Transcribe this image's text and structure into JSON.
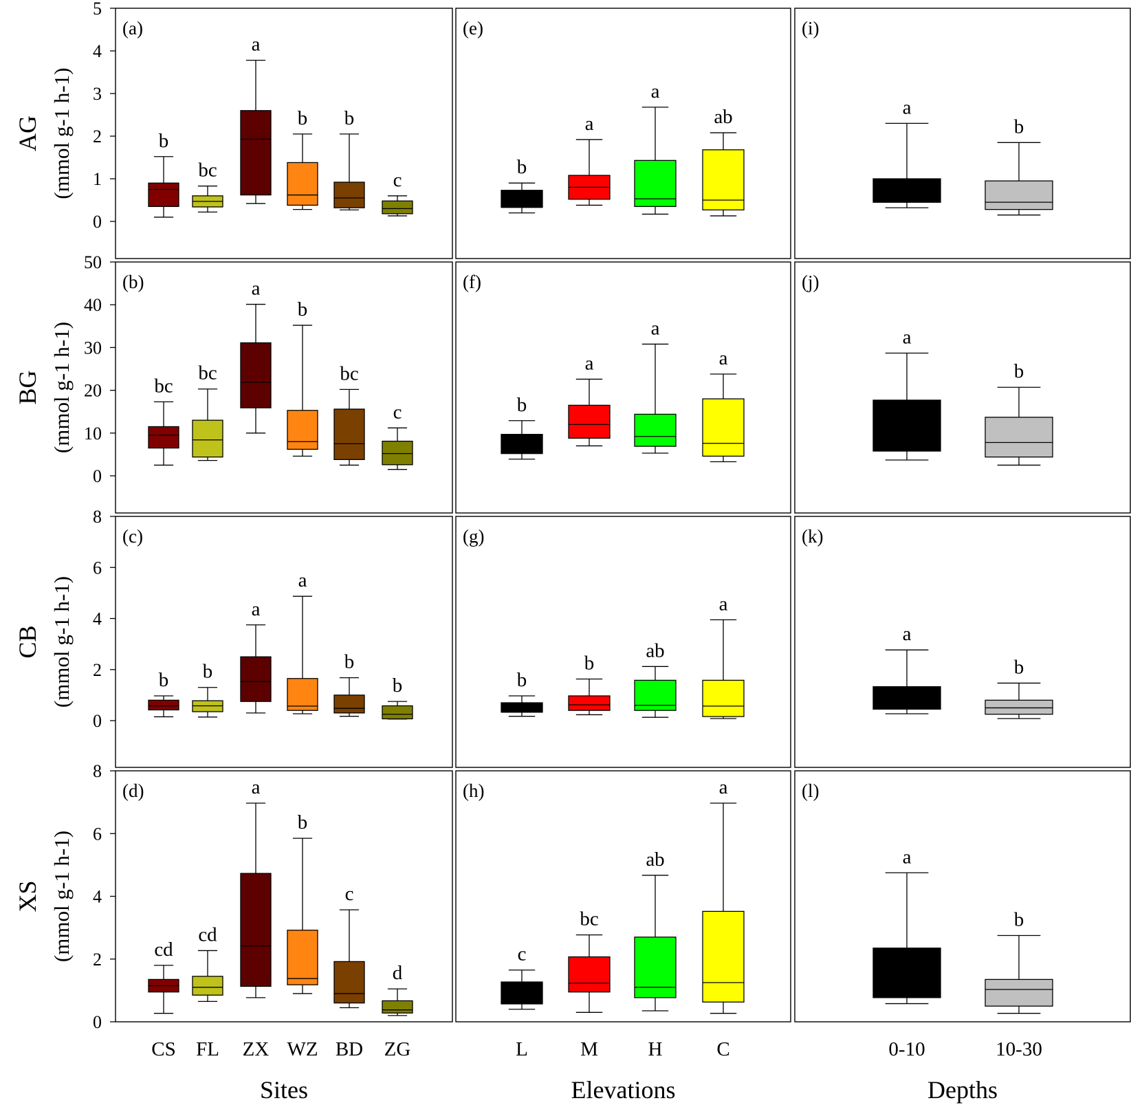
{
  "figure": {
    "x_titles": [
      "Sites",
      "Elevations",
      "Depths"
    ],
    "row_labels": [
      "AG",
      "BG",
      "CB",
      "XS"
    ],
    "unit_label": "(mmol g-1  h-1)"
  },
  "chart_data": {
    "type": "box",
    "columns": [
      {
        "title": "Sites",
        "categories": [
          "CS",
          "FL",
          "ZX",
          "WZ",
          "BD",
          "ZG"
        ],
        "colors": [
          "#800000",
          "#bfc21a",
          "#5c0000",
          "#ff8512",
          "#7a4000",
          "#808000"
        ]
      },
      {
        "title": "Elevations",
        "categories": [
          "L",
          "M",
          "H",
          "C"
        ],
        "colors": [
          "#000000",
          "#ff0000",
          "#00ff00",
          "#ffff00"
        ]
      },
      {
        "title": "Depths",
        "categories": [
          "0-10",
          "10-30"
        ],
        "colors": [
          "#000000",
          "#c0c0c0"
        ]
      }
    ],
    "rows": [
      {
        "name": "AG",
        "ylabel": "AG (mmol g-1  h-1)",
        "ylim": [
          0,
          5
        ],
        "ticks": [
          0,
          1,
          2,
          3,
          4,
          5
        ],
        "panels": [
          {
            "label": "(a)",
            "boxes": [
              {
                "category": "CS",
                "min": 0.1,
                "q1": 0.35,
                "median": 0.75,
                "q3": 0.9,
                "max": 1.52,
                "letter": "b"
              },
              {
                "category": "FL",
                "min": 0.22,
                "q1": 0.34,
                "median": 0.47,
                "q3": 0.6,
                "max": 0.83,
                "letter": "bc"
              },
              {
                "category": "ZX",
                "min": 0.42,
                "q1": 0.62,
                "median": 1.93,
                "q3": 2.6,
                "max": 3.78,
                "letter": "a"
              },
              {
                "category": "WZ",
                "min": 0.28,
                "q1": 0.38,
                "median": 0.62,
                "q3": 1.38,
                "max": 2.05,
                "letter": "b"
              },
              {
                "category": "BD",
                "min": 0.27,
                "q1": 0.32,
                "median": 0.55,
                "q3": 0.92,
                "max": 2.05,
                "letter": "b"
              },
              {
                "category": "ZG",
                "min": 0.13,
                "q1": 0.18,
                "median": 0.3,
                "q3": 0.48,
                "max": 0.6,
                "letter": "c"
              }
            ]
          },
          {
            "label": "(e)",
            "boxes": [
              {
                "category": "L",
                "min": 0.2,
                "q1": 0.33,
                "median": 0.33,
                "q3": 0.73,
                "max": 0.9,
                "letter": "b"
              },
              {
                "category": "M",
                "min": 0.38,
                "q1": 0.52,
                "median": 0.8,
                "q3": 1.08,
                "max": 1.92,
                "letter": "a"
              },
              {
                "category": "H",
                "min": 0.17,
                "q1": 0.35,
                "median": 0.53,
                "q3": 1.43,
                "max": 2.68,
                "letter": "a"
              },
              {
                "category": "C",
                "min": 0.13,
                "q1": 0.27,
                "median": 0.5,
                "q3": 1.68,
                "max": 2.08,
                "letter": "ab"
              }
            ]
          },
          {
            "label": "(i)",
            "boxes": [
              {
                "category": "0-10",
                "min": 0.32,
                "q1": 0.45,
                "median": 0.45,
                "q3": 1.0,
                "max": 2.3,
                "letter": "a"
              },
              {
                "category": "10-30",
                "min": 0.15,
                "q1": 0.28,
                "median": 0.45,
                "q3": 0.95,
                "max": 1.85,
                "letter": "b"
              }
            ]
          }
        ]
      },
      {
        "name": "BG",
        "ylabel": "BG (mmol g-1  h-1)",
        "ylim": [
          0,
          50
        ],
        "ticks": [
          0,
          10,
          20,
          30,
          40,
          50
        ],
        "panels": [
          {
            "label": "(b)",
            "boxes": [
              {
                "category": "CS",
                "min": 2.5,
                "q1": 6.5,
                "median": 9.5,
                "q3": 11.5,
                "max": 17.3,
                "letter": "bc"
              },
              {
                "category": "FL",
                "min": 3.6,
                "q1": 4.4,
                "median": 8.4,
                "q3": 13.0,
                "max": 20.3,
                "letter": "bc"
              },
              {
                "category": "ZX",
                "min": 10.0,
                "q1": 15.9,
                "median": 21.9,
                "q3": 31.1,
                "max": 40.1,
                "letter": "a"
              },
              {
                "category": "WZ",
                "min": 4.6,
                "q1": 6.2,
                "median": 8.0,
                "q3": 15.3,
                "max": 35.2,
                "letter": "b"
              },
              {
                "category": "BD",
                "min": 2.5,
                "q1": 3.8,
                "median": 7.5,
                "q3": 15.6,
                "max": 20.2,
                "letter": "bc"
              },
              {
                "category": "ZG",
                "min": 1.5,
                "q1": 2.6,
                "median": 5.2,
                "q3": 8.1,
                "max": 11.2,
                "letter": "c"
              }
            ]
          },
          {
            "label": "(f)",
            "boxes": [
              {
                "category": "L",
                "min": 3.9,
                "q1": 5.2,
                "median": 9.7,
                "q3": 9.7,
                "max": 12.9,
                "letter": "b"
              },
              {
                "category": "M",
                "min": 7.0,
                "q1": 8.8,
                "median": 12.0,
                "q3": 16.5,
                "max": 22.6,
                "letter": "a"
              },
              {
                "category": "H",
                "min": 5.3,
                "q1": 6.9,
                "median": 9.2,
                "q3": 14.4,
                "max": 30.8,
                "letter": "a"
              },
              {
                "category": "C",
                "min": 3.3,
                "q1": 4.6,
                "median": 7.6,
                "q3": 18.0,
                "max": 23.8,
                "letter": "a"
              }
            ]
          },
          {
            "label": "(j)",
            "boxes": [
              {
                "category": "0-10",
                "min": 3.7,
                "q1": 5.8,
                "median": 5.8,
                "q3": 17.7,
                "max": 28.7,
                "letter": "a"
              },
              {
                "category": "10-30",
                "min": 2.5,
                "q1": 4.4,
                "median": 7.8,
                "q3": 13.7,
                "max": 20.7,
                "letter": "b"
              }
            ]
          }
        ]
      },
      {
        "name": "CB",
        "ylabel": "CB (mmol g-1  h-1)",
        "ylim": [
          0,
          8
        ],
        "ticks": [
          0,
          2,
          4,
          6,
          8
        ],
        "panels": [
          {
            "label": "(c)",
            "boxes": [
              {
                "category": "CS",
                "min": 0.15,
                "q1": 0.42,
                "median": 0.58,
                "q3": 0.8,
                "max": 0.97,
                "letter": "b"
              },
              {
                "category": "FL",
                "min": 0.14,
                "q1": 0.35,
                "median": 0.58,
                "q3": 0.78,
                "max": 1.3,
                "letter": "b"
              },
              {
                "category": "ZX",
                "min": 0.3,
                "q1": 0.75,
                "median": 1.53,
                "q3": 2.5,
                "max": 3.75,
                "letter": "a"
              },
              {
                "category": "WZ",
                "min": 0.27,
                "q1": 0.4,
                "median": 0.57,
                "q3": 1.65,
                "max": 4.87,
                "letter": "a"
              },
              {
                "category": "BD",
                "min": 0.17,
                "q1": 0.3,
                "median": 0.48,
                "q3": 1.0,
                "max": 1.68,
                "letter": "b"
              },
              {
                "category": "ZG",
                "min": 0.06,
                "q1": 0.07,
                "median": 0.25,
                "q3": 0.58,
                "max": 0.75,
                "letter": "b"
              }
            ]
          },
          {
            "label": "(g)",
            "boxes": [
              {
                "category": "L",
                "min": 0.17,
                "q1": 0.33,
                "median": 0.33,
                "q3": 0.7,
                "max": 0.97,
                "letter": "b"
              },
              {
                "category": "M",
                "min": 0.23,
                "q1": 0.4,
                "median": 0.62,
                "q3": 0.97,
                "max": 1.63,
                "letter": "b"
              },
              {
                "category": "H",
                "min": 0.13,
                "q1": 0.4,
                "median": 0.6,
                "q3": 1.58,
                "max": 2.12,
                "letter": "ab"
              },
              {
                "category": "C",
                "min": 0.08,
                "q1": 0.16,
                "median": 0.57,
                "q3": 1.58,
                "max": 3.95,
                "letter": "a"
              }
            ]
          },
          {
            "label": "(k)",
            "boxes": [
              {
                "category": "0-10",
                "min": 0.27,
                "q1": 0.45,
                "median": 0.45,
                "q3": 1.33,
                "max": 2.77,
                "letter": "a"
              },
              {
                "category": "10-30",
                "min": 0.08,
                "q1": 0.25,
                "median": 0.5,
                "q3": 0.8,
                "max": 1.47,
                "letter": "b"
              }
            ]
          }
        ]
      },
      {
        "name": "XS",
        "ylabel": "XS (mmol g-1  h-1)",
        "ylim": [
          0,
          8
        ],
        "ticks": [
          0,
          2,
          4,
          6,
          8
        ],
        "panels": [
          {
            "label": "(d)",
            "boxes": [
              {
                "category": "CS",
                "min": 0.27,
                "q1": 0.95,
                "median": 1.15,
                "q3": 1.35,
                "max": 1.8,
                "letter": "cd"
              },
              {
                "category": "FL",
                "min": 0.65,
                "q1": 0.85,
                "median": 1.1,
                "q3": 1.45,
                "max": 2.27,
                "letter": "cd"
              },
              {
                "category": "ZX",
                "min": 0.77,
                "q1": 1.13,
                "median": 2.42,
                "q3": 4.73,
                "max": 6.97,
                "letter": "a"
              },
              {
                "category": "WZ",
                "min": 0.9,
                "q1": 1.18,
                "median": 1.38,
                "q3": 2.92,
                "max": 5.85,
                "letter": "b"
              },
              {
                "category": "BD",
                "min": 0.45,
                "q1": 0.6,
                "median": 0.9,
                "q3": 1.92,
                "max": 3.57,
                "letter": "c"
              },
              {
                "category": "ZG",
                "min": 0.2,
                "q1": 0.28,
                "median": 0.38,
                "q3": 0.67,
                "max": 1.05,
                "letter": "d"
              }
            ]
          },
          {
            "label": "(h)",
            "boxes": [
              {
                "category": "L",
                "min": 0.4,
                "q1": 0.57,
                "median": 0.95,
                "q3": 1.27,
                "max": 1.65,
                "letter": "c"
              },
              {
                "category": "M",
                "min": 0.3,
                "q1": 0.95,
                "median": 1.23,
                "q3": 2.07,
                "max": 2.77,
                "letter": "bc"
              },
              {
                "category": "H",
                "min": 0.35,
                "q1": 0.77,
                "median": 1.1,
                "q3": 2.7,
                "max": 4.67,
                "letter": "ab"
              },
              {
                "category": "C",
                "min": 0.27,
                "q1": 0.63,
                "median": 1.25,
                "q3": 3.52,
                "max": 6.97,
                "letter": "a"
              }
            ]
          },
          {
            "label": "(l)",
            "boxes": [
              {
                "category": "0-10",
                "min": 0.58,
                "q1": 0.77,
                "median": 0.77,
                "q3": 2.35,
                "max": 4.75,
                "letter": "a"
              },
              {
                "category": "10-30",
                "min": 0.27,
                "q1": 0.5,
                "median": 1.03,
                "q3": 1.35,
                "max": 2.75,
                "letter": "b"
              }
            ]
          }
        ]
      }
    ]
  }
}
